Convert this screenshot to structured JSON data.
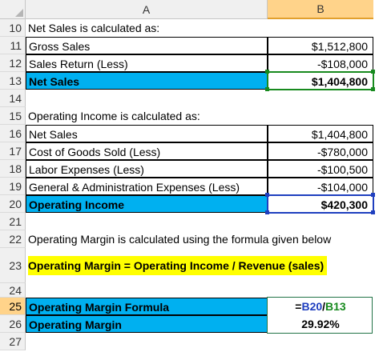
{
  "columns": {
    "a": "A",
    "b": "B"
  },
  "rows": [
    {
      "num": "10",
      "a": "Net Sales is calculated as:",
      "b": ""
    },
    {
      "num": "11",
      "a": "Gross Sales",
      "b": "$1,512,800"
    },
    {
      "num": "12",
      "a": "Sales Return (Less)",
      "b": "-$108,000"
    },
    {
      "num": "13",
      "a": "Net Sales",
      "b": "$1,404,800"
    },
    {
      "num": "14",
      "a": "",
      "b": ""
    },
    {
      "num": "15",
      "a": "Operating Income is calculated as:",
      "b": ""
    },
    {
      "num": "16",
      "a": "Net Sales",
      "b": "$1,404,800"
    },
    {
      "num": "17",
      "a": "Cost of Goods Sold (Less)",
      "b": "-$780,000"
    },
    {
      "num": "18",
      "a": "Labor Expenses (Less)",
      "b": "-$100,500"
    },
    {
      "num": "19",
      "a": "General & Administration Expenses (Less)",
      "b": "-$104,000"
    },
    {
      "num": "20",
      "a": "Operating Income",
      "b": "$420,300"
    },
    {
      "num": "21",
      "a": "",
      "b": ""
    },
    {
      "num": "22",
      "a": "Operating Margin is calculated using the formula given below",
      "b": ""
    },
    {
      "num": "23",
      "a": "Operating Margin = Operating Income / Revenue (sales)",
      "b": ""
    },
    {
      "num": "24",
      "a": "",
      "b": ""
    },
    {
      "num": "25",
      "a": "Operating Margin Formula",
      "b": ""
    },
    {
      "num": "26",
      "a": "Operating Margin",
      "b": "29.92%"
    },
    {
      "num": "27",
      "a": "",
      "b": ""
    }
  ],
  "formula": {
    "eq": "=",
    "ref1": "B20",
    "slash": "/",
    "ref2": "B13"
  },
  "colors": {
    "blue_fill": "#00b0f0",
    "yellow_fill": "#ffff00",
    "red_border": "#e00000",
    "ref_blue": "#1f3fbf",
    "ref_green": "#178a1e"
  }
}
